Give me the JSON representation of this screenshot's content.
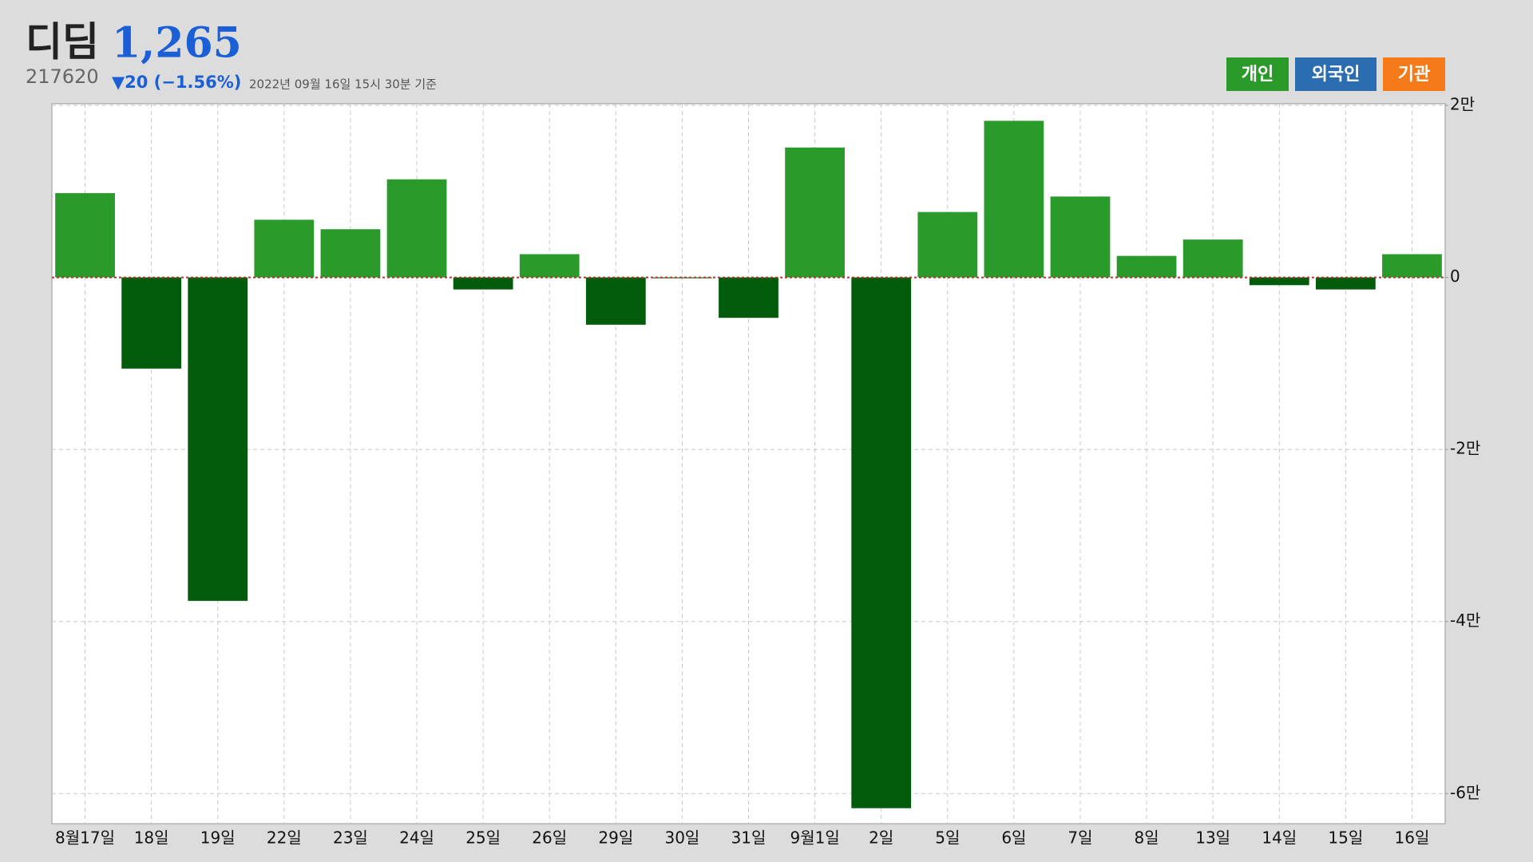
{
  "chart_data": {
    "type": "bar",
    "title": "디딤",
    "price": "1,265",
    "code": "217620",
    "change": "▼20 (−1.56%)",
    "timestamp": "2022년 09월 16일 15시 30분 기준",
    "legend": [
      {
        "name": "개인",
        "color": "#2a9a2a"
      },
      {
        "name": "외국인",
        "color": "#2a6db0"
      },
      {
        "name": "기관",
        "color": "#f57a1a"
      }
    ],
    "categories": [
      "8월17일",
      "18일",
      "19일",
      "22일",
      "23일",
      "24일",
      "25일",
      "26일",
      "29일",
      "30일",
      "31일",
      "9월1일",
      "2일",
      "5일",
      "6일",
      "7일",
      "8일",
      "13일",
      "14일",
      "15일",
      "16일"
    ],
    "series": [
      {
        "color": "#2a9a2a",
        "negative_color": "#005c0a",
        "values": [
          9800,
          -10600,
          -37600,
          6700,
          5600,
          11400,
          -1400,
          2700,
          -5500,
          -100,
          -4700,
          15100,
          -61700,
          7600,
          18200,
          9400,
          2500,
          4400,
          -900,
          -1400,
          2700
        ]
      }
    ],
    "ylim": [
      -63500,
      20000
    ],
    "yticks": [
      {
        "value": 20000,
        "label": "2만"
      },
      0,
      {
        "value": -20000,
        "label": "-2만"
      },
      {
        "value": -40000,
        "label": "-4만"
      },
      {
        "value": -60000,
        "label": "-6만"
      }
    ],
    "grid": true,
    "zero_line_color": "#e02020"
  }
}
